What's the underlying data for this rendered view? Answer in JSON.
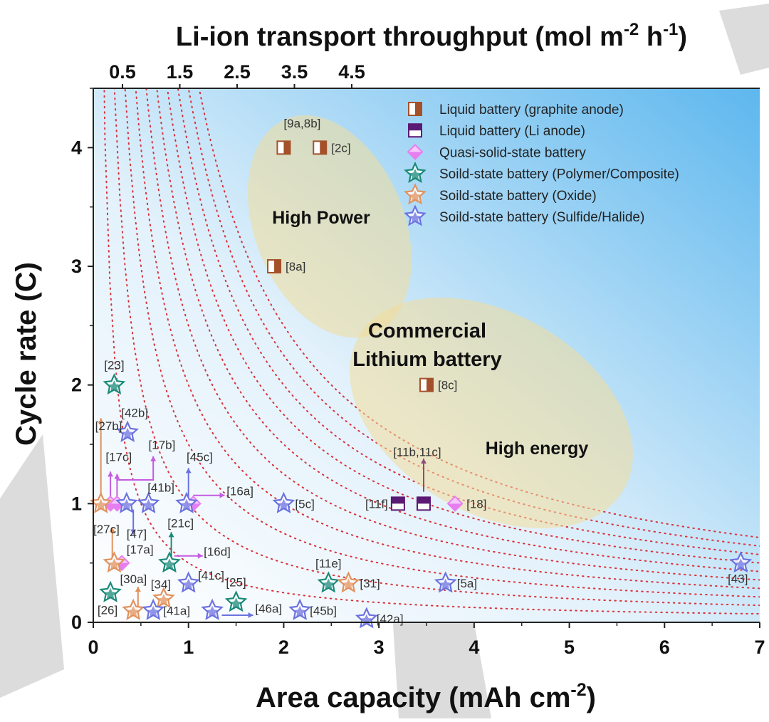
{
  "chart_data": {
    "type": "scatter",
    "xlabel": "Area capacity (mAh cm",
    "xlabel_sup": "-2",
    "xlabel_close": ")",
    "ylabel": "Cycle rate (C)",
    "top_axis_label": "Li-ion  transport throughput (mol m",
    "top_axis_sup1": "-2",
    "top_axis_mid": " h",
    "top_axis_sup2": "-1",
    "top_axis_close": ")",
    "xlim": [
      0,
      7
    ],
    "ylim": [
      0,
      4.5
    ],
    "x_ticks": [
      "0",
      "1",
      "2",
      "3",
      "4",
      "5",
      "6",
      "7"
    ],
    "y_ticks": [
      "0",
      "1",
      "2",
      "3",
      "4"
    ],
    "top_ticks": [
      "0.5",
      "1.5",
      "2.5",
      "3.5",
      "4.5"
    ],
    "iso_throughput_curves": [
      0.5,
      1.0,
      1.5,
      2.0,
      2.5,
      3.0,
      3.5,
      4.0,
      4.5,
      5.0
    ],
    "region_labels": {
      "high_power": "High Power",
      "commercial_1": "Commercial",
      "commercial_2": "Lithium battery",
      "high_energy": "High energy"
    },
    "legend": [
      {
        "label": "Liquid battery (graphite anode)",
        "marker": "half-square-graphite",
        "color": "#a4512b"
      },
      {
        "label": "Liquid battery (Li anode)",
        "marker": "half-square-li",
        "color": "#5b1a73"
      },
      {
        "label": "Quasi-solid-state battery",
        "marker": "diamond",
        "color": "#e77ef0"
      },
      {
        "label": "Soild-state battery (Polymer/Composite)",
        "marker": "star",
        "color": "#1a8a78"
      },
      {
        "label": "Soild-state battery (Oxide)",
        "marker": "star",
        "color": "#e1915d"
      },
      {
        "label": "Soild-state battery (Sulfide/Halide)",
        "marker": "star",
        "color": "#6b72e0"
      }
    ],
    "series": [
      {
        "name": "Liquid battery (graphite anode)",
        "points": [
          {
            "x": 2.0,
            "y": 4.0,
            "label": ""
          },
          {
            "x": 2.38,
            "y": 4.0,
            "label": "[2c]"
          },
          {
            "x": 1.9,
            "y": 3.0,
            "label": "[8a]"
          },
          {
            "x": 3.5,
            "y": 2.0,
            "label": "[8c]"
          }
        ]
      },
      {
        "name": "Liquid battery (Li anode)",
        "points": [
          {
            "x": 3.2,
            "y": 1.0,
            "label": "[11f]"
          },
          {
            "x": 3.47,
            "y": 1.0,
            "label": ""
          }
        ]
      },
      {
        "name": "Quasi-solid-state battery",
        "points": [
          {
            "x": 3.8,
            "y": 1.0,
            "label": "[18]"
          },
          {
            "x": 0.18,
            "y": 1.0,
            "label": ""
          },
          {
            "x": 0.25,
            "y": 1.0,
            "label": ""
          },
          {
            "x": 1.05,
            "y": 1.0,
            "label": ""
          },
          {
            "x": 0.3,
            "y": 0.5,
            "label": ""
          }
        ]
      },
      {
        "name": "Soild-state battery (Polymer/Composite)",
        "points": [
          {
            "x": 0.22,
            "y": 2.0,
            "label": "[23]"
          },
          {
            "x": 0.8,
            "y": 0.5,
            "label": ""
          },
          {
            "x": 2.47,
            "y": 0.33,
            "label": "[11e]"
          },
          {
            "x": 0.18,
            "y": 0.25,
            "label": "[26]"
          },
          {
            "x": 1.5,
            "y": 0.17,
            "label": "[25]"
          }
        ]
      },
      {
        "name": "Soild-state battery (Oxide)",
        "points": [
          {
            "x": 0.08,
            "y": 1.0,
            "label": ""
          },
          {
            "x": 0.22,
            "y": 0.5,
            "label": ""
          },
          {
            "x": 2.68,
            "y": 0.33,
            "label": "[31]"
          },
          {
            "x": 0.74,
            "y": 0.2,
            "label": "[34]"
          },
          {
            "x": 0.42,
            "y": 0.1,
            "label": ""
          }
        ]
      },
      {
        "name": "Soild-state battery (Sulfide/Halide)",
        "points": [
          {
            "x": 0.36,
            "y": 1.6,
            "label": "[42b]"
          },
          {
            "x": 0.35,
            "y": 1.0,
            "label": ""
          },
          {
            "x": 0.58,
            "y": 1.0,
            "label": ""
          },
          {
            "x": 0.98,
            "y": 1.0,
            "label": ""
          },
          {
            "x": 2.0,
            "y": 1.0,
            "label": "[5c]"
          },
          {
            "x": 1.0,
            "y": 0.33,
            "label": ""
          },
          {
            "x": 3.7,
            "y": 0.33,
            "label": "[5a]"
          },
          {
            "x": 0.63,
            "y": 0.1,
            "label": "[41a]"
          },
          {
            "x": 1.25,
            "y": 0.1,
            "label": ""
          },
          {
            "x": 2.17,
            "y": 0.1,
            "label": "[45b]"
          },
          {
            "x": 2.87,
            "y": 0.03,
            "label": "[42a]"
          },
          {
            "x": 6.8,
            "y": 0.5,
            "label": "[43]"
          }
        ]
      }
    ],
    "arrows": [
      {
        "color": "#e1915d",
        "from": [
          0.08,
          1.0
        ],
        "to": [
          0.08,
          1.72
        ]
      },
      {
        "color": "#c45be0",
        "from": [
          0.18,
          1.05
        ],
        "to": [
          0.18,
          1.27
        ]
      },
      {
        "color": "#c45be0",
        "from": [
          0.25,
          1.05
        ],
        "to": [
          0.25,
          1.25
        ]
      },
      {
        "color": "#c45be0",
        "path": [
          [
            0.25,
            1.2
          ],
          [
            0.63,
            1.2
          ],
          [
            0.63,
            1.4
          ]
        ]
      },
      {
        "color": "#6b72e0",
        "from": [
          1.0,
          1.05
        ],
        "to": [
          1.0,
          1.3
        ]
      },
      {
        "color": "#c45be0",
        "from": [
          1.05,
          1.07
        ],
        "to": [
          1.38,
          1.07
        ]
      },
      {
        "color": "#6b72e0",
        "from": [
          0.42,
          0.95
        ],
        "to": [
          0.42,
          0.74
        ]
      },
      {
        "color": "#e1915d",
        "from": [
          0.2,
          0.55
        ],
        "to": [
          0.2,
          0.8
        ]
      },
      {
        "color": "#1a8a78",
        "from": [
          0.82,
          0.55
        ],
        "to": [
          0.82,
          0.76
        ]
      },
      {
        "color": "#c45be0",
        "from": [
          0.85,
          0.56
        ],
        "to": [
          1.15,
          0.56
        ]
      },
      {
        "color": "#e1915d",
        "from": [
          0.47,
          0.13
        ],
        "to": [
          0.47,
          0.3
        ]
      },
      {
        "color": "#6b72e0",
        "from": [
          1.35,
          0.06
        ],
        "to": [
          1.68,
          0.06
        ]
      },
      {
        "color": "#8e4c78",
        "from": [
          3.47,
          1.1
        ],
        "to": [
          3.47,
          1.38
        ]
      }
    ],
    "annotations": [
      {
        "text": "[9a,8b]",
        "x": 2.0,
        "y": 4.17
      },
      {
        "text": "[27b]",
        "x": 0.02,
        "y": 1.62
      },
      {
        "text": "[17c]",
        "x": 0.13,
        "y": 1.36
      },
      {
        "text": "[17b]",
        "x": 0.58,
        "y": 1.46
      },
      {
        "text": "[45c]",
        "x": 0.98,
        "y": 1.36
      },
      {
        "text": "[41b]",
        "x": 0.57,
        "y": 1.1
      },
      {
        "text": "[16a]",
        "x": 1.4,
        "y": 1.07
      },
      {
        "text": "[27c]",
        "x": 0.0,
        "y": 0.75
      },
      {
        "text": "[47]",
        "x": 0.35,
        "y": 0.71
      },
      {
        "text": "[17a]",
        "x": 0.35,
        "y": 0.58
      },
      {
        "text": "[21c]",
        "x": 0.78,
        "y": 0.8
      },
      {
        "text": "[16d]",
        "x": 1.16,
        "y": 0.56
      },
      {
        "text": "[30a]",
        "x": 0.28,
        "y": 0.33
      },
      {
        "text": "[41c]",
        "x": 1.1,
        "y": 0.36
      },
      {
        "text": "[46a]",
        "x": 1.7,
        "y": 0.08
      },
      {
        "text": "[11b,11c]",
        "x": 3.15,
        "y": 1.4
      }
    ]
  }
}
